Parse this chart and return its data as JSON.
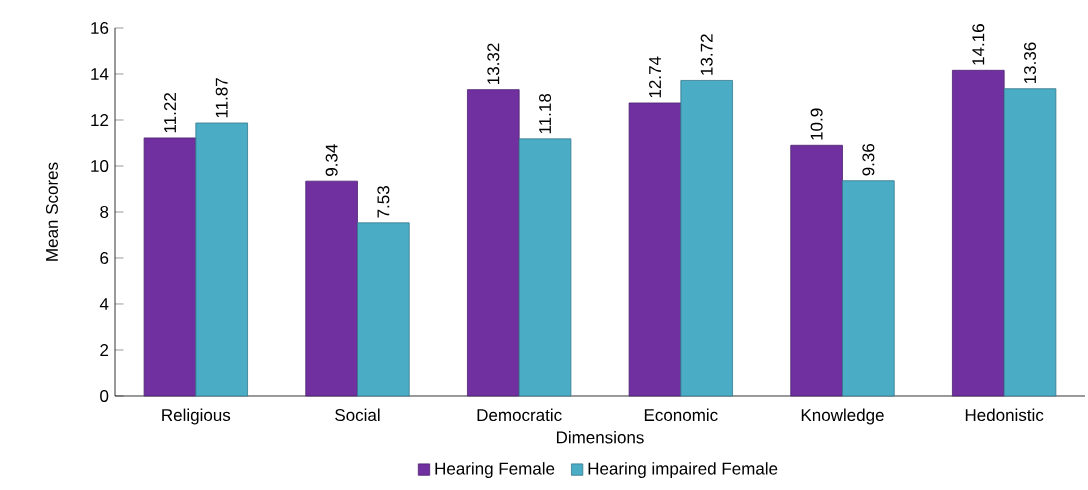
{
  "chart_data": {
    "type": "bar",
    "xlabel": "Dimensions",
    "ylabel": "Mean Scores",
    "categories": [
      "Religious",
      "Social",
      "Democratic",
      "Economic",
      "Knowledge",
      "Hedonistic"
    ],
    "series": [
      {
        "name": "Hearing Female",
        "color": "#7030a0",
        "values": [
          11.22,
          9.34,
          13.32,
          12.74,
          10.9,
          14.16
        ]
      },
      {
        "name": "Hearing impaired Female",
        "color": "#4bacc6",
        "values": [
          11.87,
          7.53,
          11.18,
          13.72,
          9.36,
          13.36
        ]
      }
    ],
    "ylim": [
      0,
      16
    ],
    "yticks": [
      0,
      2,
      4,
      6,
      8,
      10,
      12,
      14,
      16
    ],
    "data_labels": true,
    "legend": "bottom"
  }
}
